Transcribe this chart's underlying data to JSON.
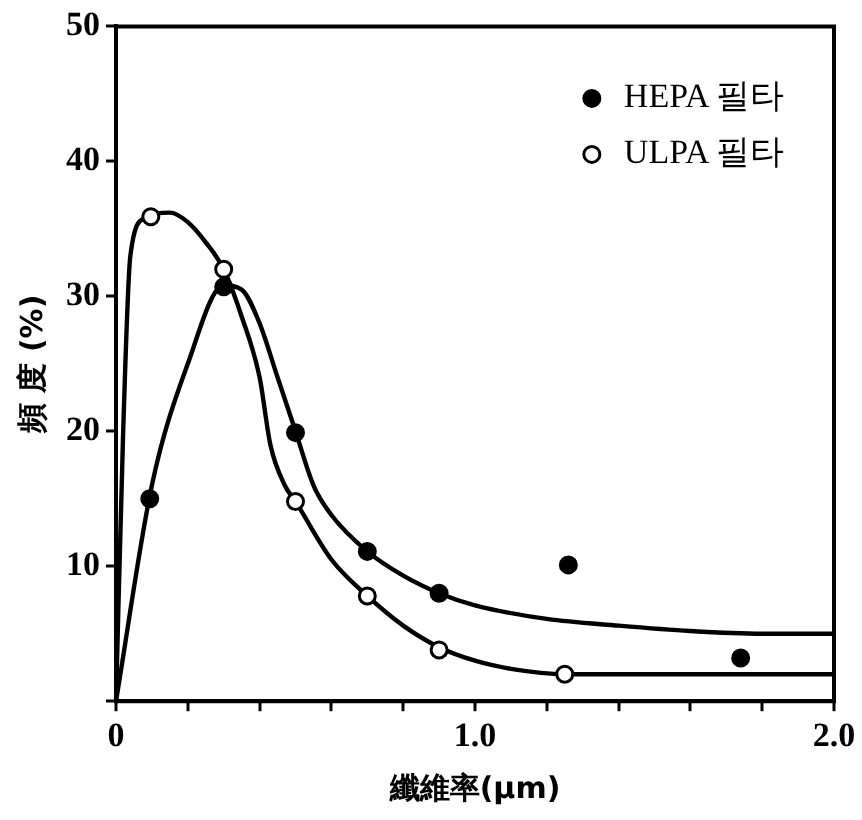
{
  "chart_data": {
    "type": "scatter",
    "xlabel": "纖維率(μm)",
    "ylabel": "頻 度 (%)",
    "xlim": [
      0,
      2.0
    ],
    "ylim": [
      0,
      50
    ],
    "xticks": [
      {
        "value": 0,
        "label": "0"
      },
      {
        "value": 0.2,
        "label": null
      },
      {
        "value": 0.4,
        "label": null
      },
      {
        "value": 0.6,
        "label": null
      },
      {
        "value": 0.8,
        "label": null
      },
      {
        "value": 1.0,
        "label": "1.0"
      },
      {
        "value": 1.2,
        "label": null
      },
      {
        "value": 1.4,
        "label": null
      },
      {
        "value": 1.6,
        "label": null
      },
      {
        "value": 1.8,
        "label": null
      },
      {
        "value": 2.0,
        "label": "2.0"
      }
    ],
    "yticks": [
      {
        "value": 0,
        "label": null
      },
      10,
      20,
      30,
      40,
      50
    ],
    "grid": false,
    "legend": "top right",
    "marker": "circle",
    "series": [
      {
        "name": "HEPA 필타",
        "color": "#000000",
        "x": [
          0.094,
          0.3,
          0.5,
          0.7,
          0.9,
          1.26,
          1.74
        ],
        "values": [
          15,
          30.7,
          19.9,
          11.1,
          8.0,
          10.1,
          3.2
        ]
      },
      {
        "name": "ULPA 필타",
        "color": "#000000",
        "x": [
          0.097,
          0.3,
          0.5,
          0.7,
          0.9,
          1.25
        ],
        "values": [
          35.9,
          32.0,
          14.8,
          7.8,
          3.8,
          2.0
        ]
      },
      {
        "type": "line",
        "marker": "none",
        "color": "#000000",
        "x": [
          0,
          0.1,
          0.2,
          0.3,
          0.35,
          0.4,
          0.45,
          0.5,
          0.55,
          0.6,
          0.7,
          0.8,
          0.9,
          1.0,
          1.2,
          1.4,
          1.6,
          1.8,
          2.0
        ],
        "values": [
          0,
          16,
          25,
          30.8,
          30.5,
          28,
          24,
          20,
          16,
          13.8,
          11.1,
          9.3,
          8.0,
          7.1,
          6.1,
          5.6,
          5.2,
          5.0,
          5.0
        ]
      },
      {
        "type": "line",
        "marker": "none",
        "color": "#000000",
        "x": [
          0,
          0.02,
          0.04,
          0.08,
          0.15,
          0.2,
          0.25,
          0.3,
          0.35,
          0.4,
          0.43,
          0.47,
          0.5,
          0.6,
          0.7,
          0.8,
          0.9,
          1.0,
          1.1,
          1.25,
          1.5,
          2.0
        ],
        "values": [
          0,
          20,
          33,
          35.8,
          36.2,
          35.5,
          34,
          32,
          28.5,
          24,
          19,
          16,
          14.8,
          10.5,
          7.8,
          5.6,
          4.0,
          3.0,
          2.4,
          2.0,
          2.0,
          2.0
        ]
      }
    ]
  }
}
